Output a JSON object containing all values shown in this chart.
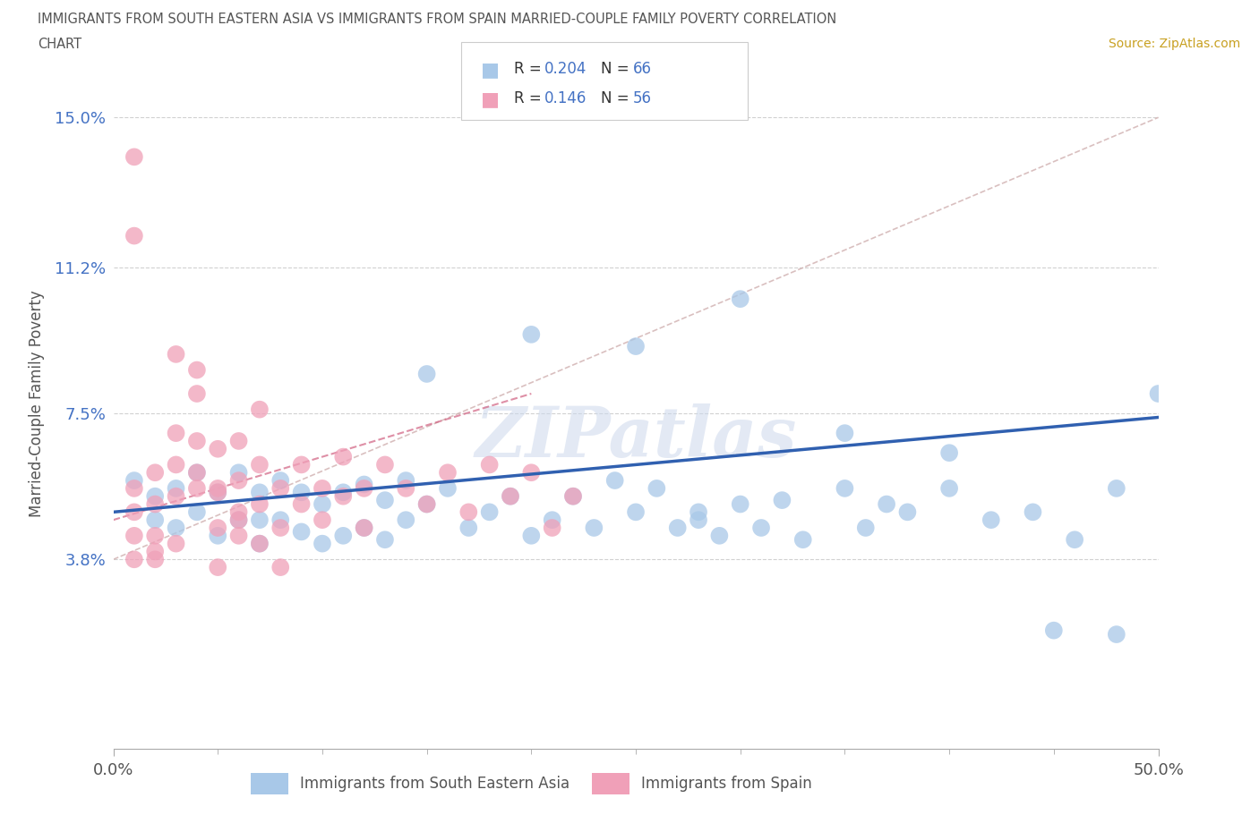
{
  "title_line1": "IMMIGRANTS FROM SOUTH EASTERN ASIA VS IMMIGRANTS FROM SPAIN MARRIED-COUPLE FAMILY POVERTY CORRELATION",
  "title_line2": "CHART",
  "source": "Source: ZipAtlas.com",
  "ylabel": "Married-Couple Family Poverty",
  "xlim": [
    0.0,
    0.5
  ],
  "ylim": [
    -0.01,
    0.165
  ],
  "yticks": [
    0.038,
    0.075,
    0.112,
    0.15
  ],
  "ytick_labels": [
    "3.8%",
    "7.5%",
    "11.2%",
    "15.0%"
  ],
  "xticks": [
    0.0,
    0.5
  ],
  "xtick_labels": [
    "0.0%",
    "50.0%"
  ],
  "color_blue": "#a8c8e8",
  "color_pink": "#f0a0b8",
  "color_blue_line": "#3060b0",
  "color_pink_line": "#d06080",
  "color_ytick": "#4472c4",
  "color_title": "#666666",
  "color_source": "#c8a020",
  "watermark": "ZIPatlas",
  "blue_trend_x": [
    0.0,
    0.5
  ],
  "blue_trend_y": [
    0.05,
    0.074
  ],
  "pink_trend_x": [
    0.0,
    0.2
  ],
  "pink_trend_y": [
    0.048,
    0.08
  ],
  "grey_trend_x": [
    0.0,
    0.5
  ],
  "grey_trend_y": [
    0.038,
    0.15
  ],
  "blue_scatter_x": [
    0.01,
    0.02,
    0.02,
    0.03,
    0.03,
    0.04,
    0.04,
    0.05,
    0.05,
    0.06,
    0.06,
    0.07,
    0.07,
    0.07,
    0.08,
    0.08,
    0.09,
    0.09,
    0.1,
    0.1,
    0.11,
    0.11,
    0.12,
    0.12,
    0.13,
    0.13,
    0.14,
    0.14,
    0.15,
    0.16,
    0.17,
    0.18,
    0.19,
    0.2,
    0.21,
    0.22,
    0.23,
    0.24,
    0.25,
    0.26,
    0.27,
    0.28,
    0.29,
    0.3,
    0.31,
    0.32,
    0.33,
    0.35,
    0.36,
    0.37,
    0.38,
    0.4,
    0.42,
    0.44,
    0.46,
    0.48,
    0.5,
    0.3,
    0.2,
    0.15,
    0.25,
    0.4,
    0.45,
    0.48,
    0.35,
    0.28
  ],
  "blue_scatter_y": [
    0.058,
    0.054,
    0.048,
    0.056,
    0.046,
    0.06,
    0.05,
    0.055,
    0.044,
    0.06,
    0.048,
    0.055,
    0.048,
    0.042,
    0.058,
    0.048,
    0.055,
    0.045,
    0.052,
    0.042,
    0.055,
    0.044,
    0.057,
    0.046,
    0.053,
    0.043,
    0.058,
    0.048,
    0.052,
    0.056,
    0.046,
    0.05,
    0.054,
    0.044,
    0.048,
    0.054,
    0.046,
    0.058,
    0.05,
    0.056,
    0.046,
    0.05,
    0.044,
    0.052,
    0.046,
    0.053,
    0.043,
    0.056,
    0.046,
    0.052,
    0.05,
    0.056,
    0.048,
    0.05,
    0.043,
    0.056,
    0.08,
    0.104,
    0.095,
    0.085,
    0.092,
    0.065,
    0.02,
    0.019,
    0.07,
    0.048
  ],
  "pink_scatter_x": [
    0.01,
    0.01,
    0.01,
    0.01,
    0.02,
    0.02,
    0.02,
    0.03,
    0.03,
    0.03,
    0.04,
    0.04,
    0.04,
    0.05,
    0.05,
    0.05,
    0.06,
    0.06,
    0.06,
    0.07,
    0.07,
    0.08,
    0.08,
    0.09,
    0.09,
    0.1,
    0.1,
    0.11,
    0.11,
    0.12,
    0.12,
    0.13,
    0.14,
    0.15,
    0.16,
    0.17,
    0.18,
    0.19,
    0.2,
    0.21,
    0.22,
    0.03,
    0.04,
    0.05,
    0.06,
    0.07,
    0.08,
    0.01,
    0.02,
    0.01,
    0.02,
    0.03,
    0.04,
    0.05,
    0.06,
    0.07
  ],
  "pink_scatter_y": [
    0.056,
    0.05,
    0.044,
    0.038,
    0.06,
    0.052,
    0.044,
    0.07,
    0.062,
    0.054,
    0.08,
    0.068,
    0.056,
    0.066,
    0.056,
    0.046,
    0.058,
    0.05,
    0.044,
    0.062,
    0.052,
    0.056,
    0.046,
    0.062,
    0.052,
    0.056,
    0.048,
    0.064,
    0.054,
    0.056,
    0.046,
    0.062,
    0.056,
    0.052,
    0.06,
    0.05,
    0.062,
    0.054,
    0.06,
    0.046,
    0.054,
    0.09,
    0.086,
    0.036,
    0.048,
    0.042,
    0.036,
    0.12,
    0.038,
    0.14,
    0.04,
    0.042,
    0.06,
    0.055,
    0.068,
    0.076
  ]
}
